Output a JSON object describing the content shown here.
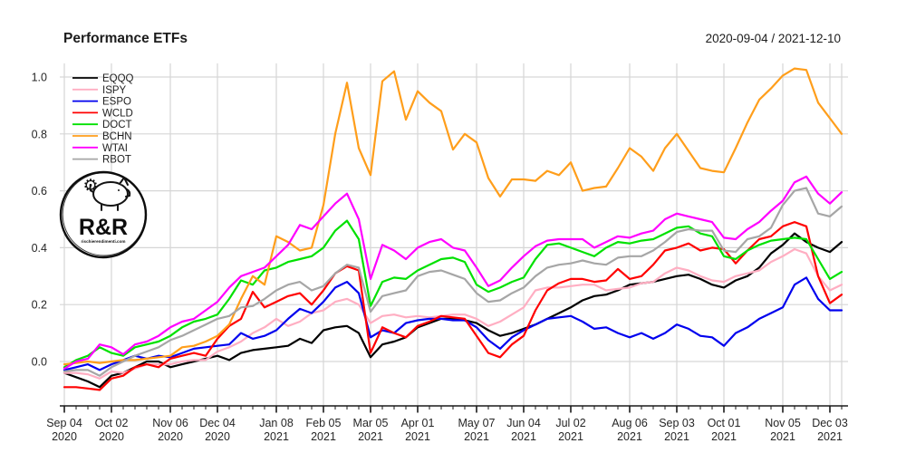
{
  "header": {
    "title": "Performance ETFs",
    "date_range": "2020-09-04 / 2021-12-10"
  },
  "logo": {
    "text": "R&R",
    "subtext": "rischierendimenti.com",
    "gear_icon": "⚙"
  },
  "chart_data": {
    "type": "line",
    "title": "Performance ETFs",
    "x_unit": "weeks since 2020-09-04",
    "x_range_dates": [
      "2020-09-04",
      "2021-12-10"
    ],
    "ylim": [
      -0.12,
      1.06
    ],
    "grid": true,
    "legend_position": "top-left",
    "y_ticks": [
      {
        "value": 0.0,
        "label": "0.0"
      },
      {
        "value": 0.2,
        "label": "0.2"
      },
      {
        "value": 0.4,
        "label": "0.4"
      },
      {
        "value": 0.6,
        "label": "0.6"
      },
      {
        "value": 0.8,
        "label": "0.8"
      },
      {
        "value": 1.0,
        "label": "1.0"
      }
    ],
    "x_ticks": [
      {
        "week": 0,
        "label": "Sep 04",
        "year": "2020"
      },
      {
        "week": 4,
        "label": "Oct 02",
        "year": "2020"
      },
      {
        "week": 9,
        "label": "Nov 06",
        "year": "2020"
      },
      {
        "week": 13,
        "label": "Dec 04",
        "year": "2020"
      },
      {
        "week": 18,
        "label": "Jan 08",
        "year": "2021"
      },
      {
        "week": 22,
        "label": "Feb 05",
        "year": "2021"
      },
      {
        "week": 26,
        "label": "Mar 05",
        "year": "2021"
      },
      {
        "week": 30,
        "label": "Apr 01",
        "year": "2021"
      },
      {
        "week": 35,
        "label": "May 07",
        "year": "2021"
      },
      {
        "week": 39,
        "label": "Jun 04",
        "year": "2021"
      },
      {
        "week": 43,
        "label": "Jul 02",
        "year": "2021"
      },
      {
        "week": 48,
        "label": "Aug 06",
        "year": "2021"
      },
      {
        "week": 52,
        "label": "Sep 03",
        "year": "2021"
      },
      {
        "week": 56,
        "label": "Oct 01",
        "year": "2021"
      },
      {
        "week": 61,
        "label": "Nov 05",
        "year": "2021"
      },
      {
        "week": 65,
        "label": "Dec 03",
        "year": "2021"
      }
    ],
    "weeks_total": 66,
    "series": [
      {
        "name": "EQQQ",
        "color": "#000000",
        "values": [
          -0.04,
          -0.055,
          -0.07,
          -0.09,
          -0.05,
          -0.04,
          -0.02,
          0.0,
          0.0,
          -0.02,
          -0.01,
          0.0,
          0.01,
          0.02,
          0.005,
          0.03,
          0.04,
          0.045,
          0.05,
          0.055,
          0.08,
          0.065,
          0.11,
          0.12,
          0.125,
          0.1,
          0.015,
          0.06,
          0.07,
          0.085,
          0.12,
          0.135,
          0.15,
          0.15,
          0.145,
          0.135,
          0.11,
          0.09,
          0.1,
          0.115,
          0.13,
          0.15,
          0.17,
          0.19,
          0.215,
          0.23,
          0.235,
          0.25,
          0.27,
          0.275,
          0.28,
          0.29,
          0.3,
          0.305,
          0.29,
          0.27,
          0.26,
          0.285,
          0.3,
          0.33,
          0.38,
          0.41,
          0.45,
          0.42,
          0.4,
          0.385,
          0.42
        ]
      },
      {
        "name": "ISPY",
        "color": "#ffaec2",
        "values": [
          -0.04,
          -0.04,
          -0.045,
          -0.06,
          -0.035,
          -0.04,
          -0.025,
          -0.01,
          -0.01,
          -0.01,
          0.0,
          0.005,
          0.005,
          0.035,
          0.05,
          0.07,
          0.1,
          0.12,
          0.15,
          0.125,
          0.14,
          0.17,
          0.18,
          0.21,
          0.22,
          0.2,
          0.135,
          0.16,
          0.165,
          0.155,
          0.16,
          0.155,
          0.16,
          0.165,
          0.165,
          0.15,
          0.125,
          0.14,
          0.165,
          0.19,
          0.25,
          0.26,
          0.26,
          0.265,
          0.27,
          0.27,
          0.25,
          0.255,
          0.26,
          0.275,
          0.28,
          0.31,
          0.33,
          0.32,
          0.3,
          0.285,
          0.28,
          0.3,
          0.31,
          0.32,
          0.35,
          0.37,
          0.395,
          0.38,
          0.3,
          0.25,
          0.27
        ]
      },
      {
        "name": "ESPO",
        "color": "#0000ee",
        "values": [
          -0.03,
          -0.02,
          -0.01,
          -0.03,
          -0.01,
          0.005,
          0.02,
          0.01,
          0.02,
          0.015,
          0.03,
          0.045,
          0.05,
          0.055,
          0.06,
          0.1,
          0.08,
          0.09,
          0.11,
          0.15,
          0.185,
          0.17,
          0.21,
          0.26,
          0.28,
          0.24,
          0.085,
          0.11,
          0.1,
          0.135,
          0.145,
          0.15,
          0.15,
          0.145,
          0.145,
          0.12,
          0.075,
          0.045,
          0.085,
          0.11,
          0.13,
          0.15,
          0.155,
          0.16,
          0.14,
          0.115,
          0.12,
          0.1,
          0.085,
          0.1,
          0.08,
          0.1,
          0.13,
          0.115,
          0.09,
          0.085,
          0.055,
          0.1,
          0.12,
          0.15,
          0.17,
          0.19,
          0.27,
          0.295,
          0.22,
          0.18,
          0.18
        ]
      },
      {
        "name": "WCLD",
        "color": "#ff0000",
        "values": [
          -0.09,
          -0.09,
          -0.095,
          -0.1,
          -0.06,
          -0.05,
          -0.02,
          -0.01,
          -0.02,
          0.01,
          0.02,
          0.03,
          0.02,
          0.08,
          0.125,
          0.15,
          0.245,
          0.19,
          0.21,
          0.23,
          0.24,
          0.2,
          0.25,
          0.31,
          0.335,
          0.32,
          0.03,
          0.12,
          0.1,
          0.085,
          0.125,
          0.14,
          0.16,
          0.155,
          0.15,
          0.09,
          0.03,
          0.015,
          0.06,
          0.09,
          0.18,
          0.25,
          0.275,
          0.29,
          0.29,
          0.28,
          0.285,
          0.325,
          0.29,
          0.3,
          0.34,
          0.39,
          0.4,
          0.415,
          0.39,
          0.4,
          0.395,
          0.345,
          0.39,
          0.43,
          0.44,
          0.475,
          0.49,
          0.475,
          0.3,
          0.205,
          0.235
        ]
      },
      {
        "name": "DOCT",
        "color": "#00e100",
        "values": [
          -0.02,
          0.005,
          0.02,
          0.05,
          0.03,
          0.02,
          0.05,
          0.06,
          0.07,
          0.09,
          0.12,
          0.14,
          0.15,
          0.165,
          0.22,
          0.285,
          0.27,
          0.32,
          0.33,
          0.35,
          0.36,
          0.37,
          0.4,
          0.46,
          0.495,
          0.43,
          0.195,
          0.28,
          0.295,
          0.29,
          0.32,
          0.34,
          0.36,
          0.365,
          0.35,
          0.27,
          0.245,
          0.26,
          0.28,
          0.295,
          0.36,
          0.41,
          0.415,
          0.4,
          0.385,
          0.37,
          0.4,
          0.42,
          0.415,
          0.425,
          0.43,
          0.45,
          0.47,
          0.475,
          0.45,
          0.44,
          0.37,
          0.36,
          0.39,
          0.41,
          0.425,
          0.43,
          0.435,
          0.43,
          0.36,
          0.29,
          0.315
        ]
      },
      {
        "name": "BCHN",
        "color": "#ff9e1b",
        "values": [
          -0.01,
          -0.005,
          0.0,
          -0.005,
          0.0,
          0.005,
          0.005,
          0.01,
          0.015,
          0.02,
          0.05,
          0.055,
          0.07,
          0.09,
          0.13,
          0.22,
          0.3,
          0.27,
          0.44,
          0.42,
          0.39,
          0.4,
          0.55,
          0.8,
          0.98,
          0.75,
          0.655,
          0.985,
          1.02,
          0.85,
          0.95,
          0.91,
          0.88,
          0.745,
          0.8,
          0.77,
          0.645,
          0.58,
          0.64,
          0.64,
          0.635,
          0.67,
          0.655,
          0.7,
          0.6,
          0.61,
          0.615,
          0.68,
          0.75,
          0.72,
          0.67,
          0.75,
          0.8,
          0.74,
          0.68,
          0.67,
          0.665,
          0.75,
          0.84,
          0.92,
          0.96,
          1.005,
          1.03,
          1.025,
          0.91,
          0.855,
          0.8
        ]
      },
      {
        "name": "WTAI",
        "color": "#ff00ff",
        "values": [
          -0.025,
          0.0,
          0.01,
          0.06,
          0.05,
          0.025,
          0.06,
          0.07,
          0.09,
          0.12,
          0.14,
          0.15,
          0.18,
          0.21,
          0.26,
          0.3,
          0.315,
          0.33,
          0.37,
          0.41,
          0.48,
          0.465,
          0.51,
          0.555,
          0.59,
          0.5,
          0.29,
          0.41,
          0.39,
          0.36,
          0.4,
          0.42,
          0.43,
          0.4,
          0.39,
          0.33,
          0.265,
          0.285,
          0.33,
          0.37,
          0.405,
          0.425,
          0.43,
          0.43,
          0.43,
          0.4,
          0.42,
          0.44,
          0.435,
          0.45,
          0.46,
          0.5,
          0.52,
          0.51,
          0.5,
          0.49,
          0.435,
          0.43,
          0.465,
          0.49,
          0.53,
          0.565,
          0.63,
          0.65,
          0.59,
          0.555,
          0.595
        ]
      },
      {
        "name": "RBOT",
        "color": "#a6a6a6",
        "values": [
          -0.035,
          -0.03,
          -0.03,
          -0.05,
          -0.02,
          0.0,
          0.02,
          0.035,
          0.05,
          0.075,
          0.09,
          0.11,
          0.13,
          0.15,
          0.16,
          0.19,
          0.195,
          0.22,
          0.25,
          0.27,
          0.28,
          0.25,
          0.265,
          0.31,
          0.34,
          0.33,
          0.175,
          0.23,
          0.24,
          0.25,
          0.3,
          0.315,
          0.32,
          0.305,
          0.29,
          0.24,
          0.21,
          0.215,
          0.24,
          0.26,
          0.3,
          0.33,
          0.34,
          0.345,
          0.355,
          0.345,
          0.34,
          0.365,
          0.37,
          0.37,
          0.39,
          0.42,
          0.455,
          0.465,
          0.46,
          0.46,
          0.39,
          0.385,
          0.43,
          0.44,
          0.47,
          0.55,
          0.6,
          0.61,
          0.52,
          0.51,
          0.545
        ]
      }
    ]
  }
}
